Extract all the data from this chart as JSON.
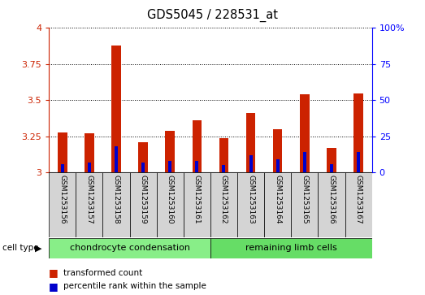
{
  "title": "GDS5045 / 228531_at",
  "categories": [
    "GSM1253156",
    "GSM1253157",
    "GSM1253158",
    "GSM1253159",
    "GSM1253160",
    "GSM1253161",
    "GSM1253162",
    "GSM1253163",
    "GSM1253164",
    "GSM1253165",
    "GSM1253166",
    "GSM1253167"
  ],
  "red_values": [
    3.28,
    3.27,
    3.88,
    3.21,
    3.29,
    3.36,
    3.24,
    3.41,
    3.3,
    3.54,
    3.17,
    3.55
  ],
  "blue_values": [
    3.06,
    3.07,
    3.18,
    3.07,
    3.08,
    3.08,
    3.05,
    3.12,
    3.09,
    3.14,
    3.06,
    3.14
  ],
  "ymin": 3.0,
  "ymax": 4.0,
  "yticks": [
    3.0,
    3.25,
    3.5,
    3.75,
    4.0
  ],
  "yticklabels": [
    "3",
    "3.25",
    "3.5",
    "3.75",
    "4"
  ],
  "right_yticks": [
    0,
    25,
    50,
    75,
    100
  ],
  "right_yticklabels": [
    "0",
    "25",
    "50",
    "75",
    "100%"
  ],
  "red_color": "#cc2200",
  "blue_color": "#0000cc",
  "bar_width": 0.35,
  "blue_bar_width": 0.12,
  "grid_color": "#000000",
  "cell_type_groups": [
    {
      "label": "chondrocyte condensation",
      "indices": [
        0,
        1,
        2,
        3,
        4,
        5
      ],
      "color": "#88ee88"
    },
    {
      "label": "remaining limb cells",
      "indices": [
        6,
        7,
        8,
        9,
        10,
        11
      ],
      "color": "#66dd66"
    }
  ],
  "cell_type_label": "cell type",
  "legend_items": [
    {
      "label": "transformed count",
      "color": "#cc2200"
    },
    {
      "label": "percentile rank within the sample",
      "color": "#0000cc"
    }
  ],
  "left_axis_color": "#cc2200",
  "right_axis_color": "#0000ff",
  "background_color": "#ffffff",
  "xtick_bg_color": "#d4d4d4"
}
